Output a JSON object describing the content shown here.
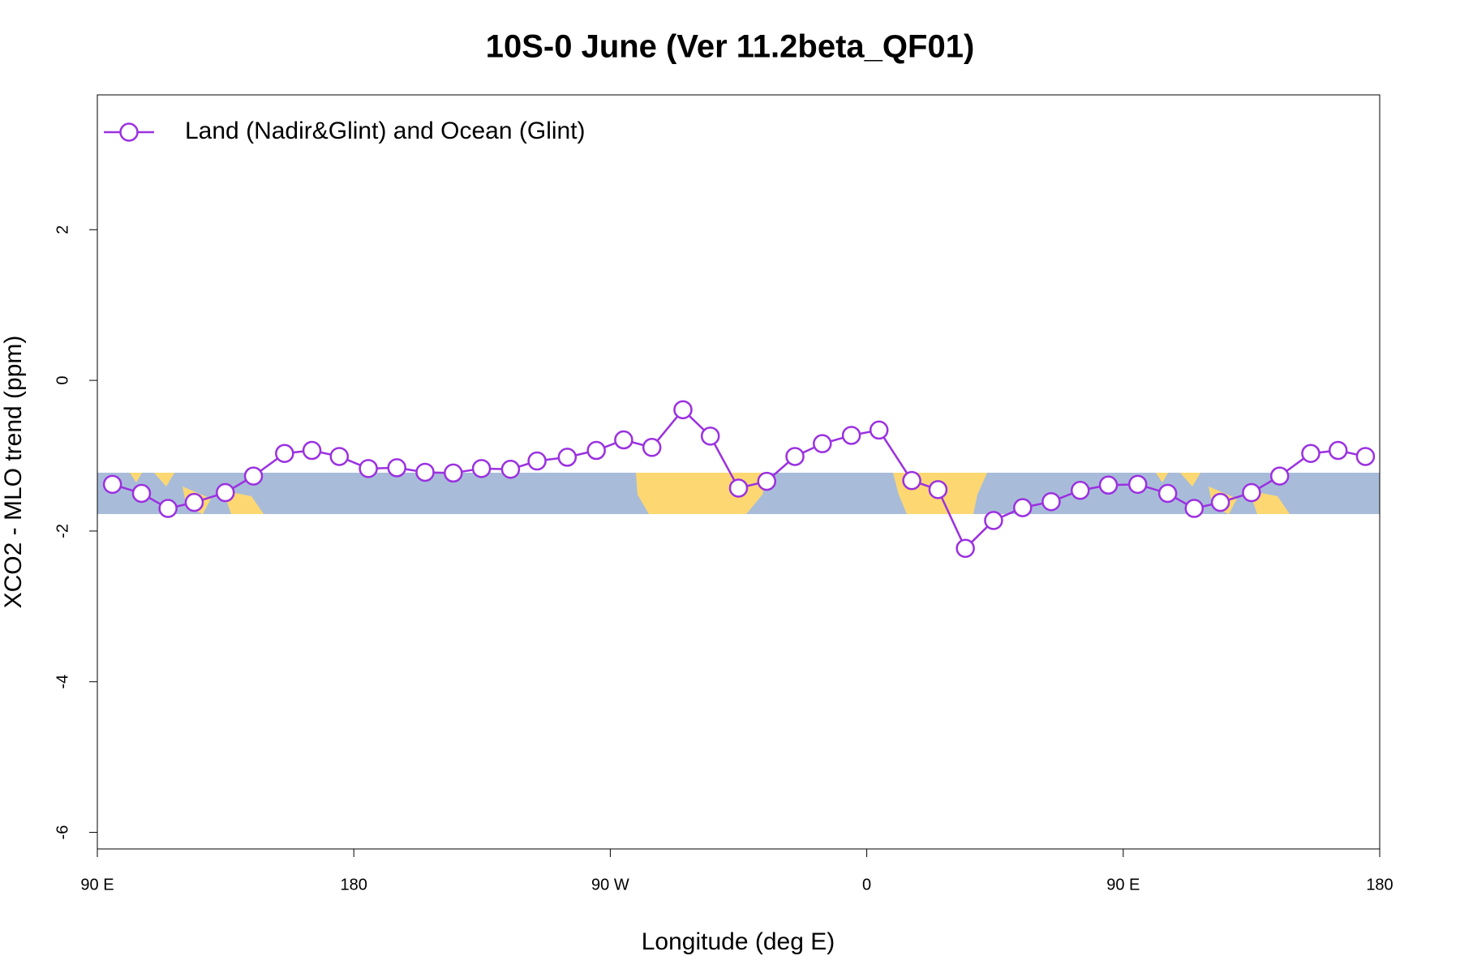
{
  "chart_data": {
    "type": "line",
    "title": "10S-0 June (Ver 11.2beta_QF01)",
    "x_label": "Longitude (deg E)",
    "y_label": "XCO2 - MLO trend (ppm)",
    "xlim": [
      90,
      540
    ],
    "ylim": [
      -6.22,
      3.79
    ],
    "xticks": [
      {
        "value": 90,
        "label": "90 E"
      },
      180,
      {
        "value": 270,
        "label": "90 W"
      },
      {
        "value": 360,
        "label": "0"
      },
      {
        "value": 450,
        "label": "90 E"
      },
      {
        "value": 540,
        "label": "180"
      }
    ],
    "yticks": [
      -6,
      -4,
      -2,
      0,
      2
    ],
    "legend": "top-left",
    "series": [
      {
        "name": "Land (Nadir&Glint) and Ocean (Glint)",
        "color": "#9b30e0",
        "x": [
          95.3,
          105.5,
          114.8,
          124.0,
          134.9,
          144.8,
          155.7,
          165.3,
          174.9,
          185.1,
          195.1,
          205.0,
          214.9,
          224.8,
          235.0,
          244.3,
          254.9,
          265.1,
          274.7,
          284.6,
          295.5,
          305.1,
          315.0,
          324.9,
          334.8,
          344.4,
          354.6,
          364.3,
          375.8,
          385.0,
          394.6,
          404.5,
          414.7,
          424.7,
          434.9,
          444.8,
          455.1,
          465.6,
          474.9,
          484.1,
          495.0,
          504.9,
          515.8,
          525.4,
          535.0
        ],
        "values": [
          -1.38,
          -1.5,
          -1.7,
          -1.62,
          -1.49,
          -1.27,
          -0.97,
          -0.93,
          -1.01,
          -1.17,
          -1.16,
          -1.22,
          -1.23,
          -1.17,
          -1.18,
          -1.07,
          -1.02,
          -0.93,
          -0.79,
          -0.89,
          -0.39,
          -0.74,
          -1.43,
          -1.34,
          -1.01,
          -0.84,
          -0.73,
          -0.66,
          -1.33,
          -1.45,
          -2.23,
          -1.86,
          -1.69,
          -1.61,
          -1.46,
          -1.39,
          -1.38,
          -1.5,
          -1.7,
          -1.62,
          -1.49,
          -1.27,
          -0.97,
          -0.93,
          -1.01
        ]
      }
    ]
  }
}
